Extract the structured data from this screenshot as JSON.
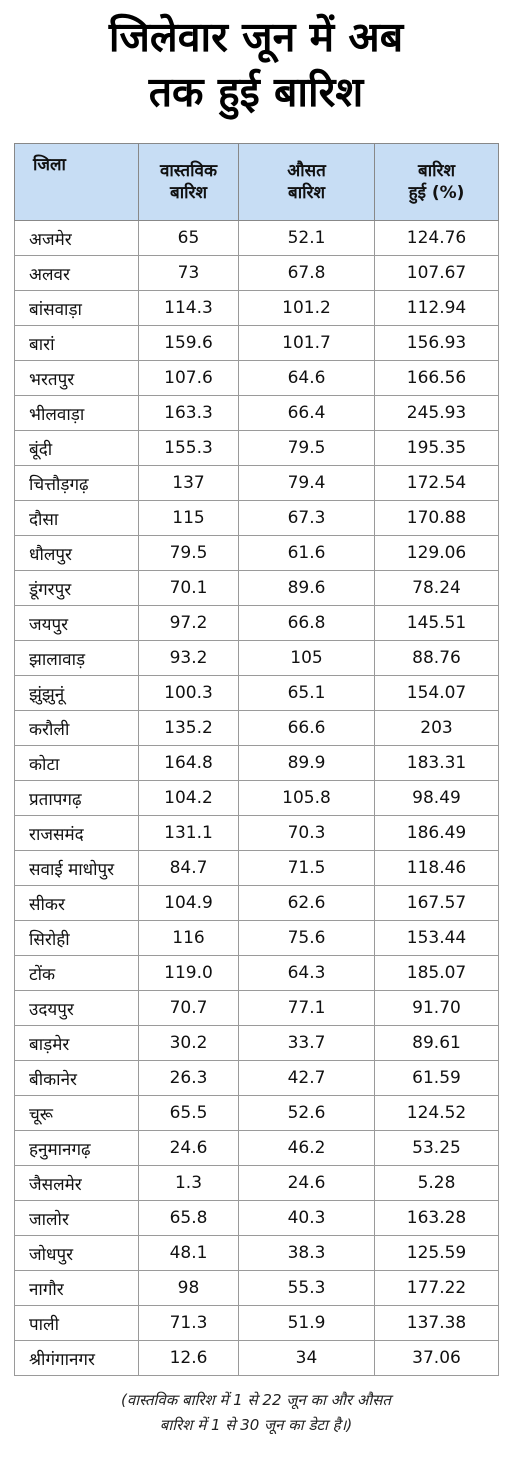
{
  "title_lines": [
    "जिलेवार जून में अब",
    "तक हुई बारिश"
  ],
  "chart_data": {
    "type": "table",
    "columns": [
      {
        "line1": "जिला",
        "line2": ""
      },
      {
        "line1": "वास्तविक",
        "line2": "बारिश"
      },
      {
        "line1": "औसत",
        "line2": "बारिश"
      },
      {
        "line1": "बारिश",
        "line2": "हुई (%)"
      }
    ],
    "rows": [
      [
        "अजमेर",
        "65",
        "52.1",
        "124.76"
      ],
      [
        "अलवर",
        "73",
        "67.8",
        "107.67"
      ],
      [
        "बांसवाड़ा",
        "114.3",
        "101.2",
        "112.94"
      ],
      [
        "बारां",
        "159.6",
        "101.7",
        "156.93"
      ],
      [
        "भरतपुर",
        "107.6",
        "64.6",
        "166.56"
      ],
      [
        "भीलवाड़ा",
        "163.3",
        "66.4",
        "245.93"
      ],
      [
        "बूंदी",
        "155.3",
        "79.5",
        "195.35"
      ],
      [
        "चित्तौड़गढ़",
        "137",
        "79.4",
        "172.54"
      ],
      [
        "दौसा",
        "115",
        "67.3",
        "170.88"
      ],
      [
        "धौलपुर",
        "79.5",
        "61.6",
        "129.06"
      ],
      [
        "डूंगरपुर",
        "70.1",
        "89.6",
        "78.24"
      ],
      [
        "जयपुर",
        "97.2",
        "66.8",
        "145.51"
      ],
      [
        "झालावाड़",
        "93.2",
        "105",
        "88.76"
      ],
      [
        "झुंझुनूं",
        "100.3",
        "65.1",
        "154.07"
      ],
      [
        "करौली",
        "135.2",
        "66.6",
        "203"
      ],
      [
        "कोटा",
        "164.8",
        "89.9",
        "183.31"
      ],
      [
        "प्रतापगढ़",
        "104.2",
        "105.8",
        "98.49"
      ],
      [
        "राजसमंद",
        "131.1",
        "70.3",
        "186.49"
      ],
      [
        "सवाई माधोपुर",
        "84.7",
        "71.5",
        "118.46"
      ],
      [
        "सीकर",
        "104.9",
        "62.6",
        "167.57"
      ],
      [
        "सिरोही",
        "116",
        "75.6",
        "153.44"
      ],
      [
        "टोंक",
        "119.0",
        "64.3",
        "185.07"
      ],
      [
        "उदयपुर",
        "70.7",
        "77.1",
        "91.70"
      ],
      [
        "बाड़मेर",
        "30.2",
        "33.7",
        "89.61"
      ],
      [
        "बीकानेर",
        "26.3",
        "42.7",
        "61.59"
      ],
      [
        "चूरू",
        "65.5",
        "52.6",
        "124.52"
      ],
      [
        "हनुमानगढ़",
        "24.6",
        "46.2",
        "53.25"
      ],
      [
        "जैसलमेर",
        "1.3",
        "24.6",
        "5.28"
      ],
      [
        "जालोर",
        "65.8",
        "40.3",
        "163.28"
      ],
      [
        "जोधपुर",
        "48.1",
        "38.3",
        "125.59"
      ],
      [
        "नागौर",
        "98",
        "55.3",
        "177.22"
      ],
      [
        "पाली",
        "71.3",
        "51.9",
        "137.38"
      ],
      [
        "श्रीगंगानगर",
        "12.6",
        "34",
        "37.06"
      ]
    ]
  },
  "footnote_lines": [
    "(वास्तविक बारिश में 1 से 22 जून का और औसत",
    "बारिश में 1 से 30 जून का डेटा है।)"
  ],
  "colors": {
    "header_bg": "#c7ddf4",
    "border": "#9a9a9a"
  }
}
